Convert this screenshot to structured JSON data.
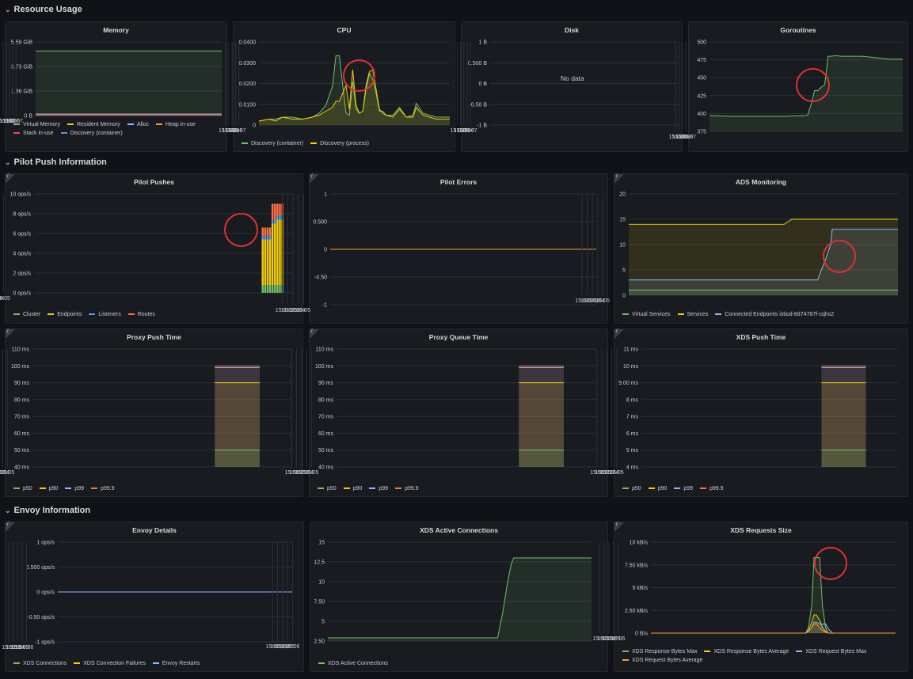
{
  "rows": [
    {
      "id": "row-resource",
      "title": "Resource Usage"
    },
    {
      "id": "row-pilot",
      "title": "Pilot Push Information"
    },
    {
      "id": "row-envoy",
      "title": "Envoy Information"
    }
  ],
  "chart_data": [
    {
      "id": "memory",
      "title": "Memory",
      "type": "area",
      "y_ticks": [
        "0 B",
        "1.86 GiB",
        "3.73 GiB",
        "5.59 GiB"
      ],
      "ylim": [
        0,
        5.59
      ],
      "x_ticks": [
        "15:03",
        "15:04",
        "15:05",
        "15:06",
        "15:07"
      ],
      "xlim": [
        15.013,
        15.07
      ],
      "series": [
        {
          "name": "Virtual Memory",
          "color": "#73bf69",
          "x": [
            15.013,
            15.07
          ],
          "y": [
            4.9,
            4.9
          ]
        },
        {
          "name": "Resident Memory",
          "color": "#f2cc0c",
          "x": [
            15.013,
            15.07
          ],
          "y": [
            0.12,
            0.12
          ]
        },
        {
          "name": "Alloc",
          "color": "#8ab8ff",
          "x": [
            15.013,
            15.07
          ],
          "y": [
            0.05,
            0.05
          ]
        },
        {
          "name": "Heap in-use",
          "color": "#ff9830",
          "x": [
            15.013,
            15.07
          ],
          "y": [
            0.06,
            0.06
          ]
        },
        {
          "name": "Stack in-use",
          "color": "#f2495c",
          "x": [
            15.013,
            15.07
          ],
          "y": [
            0.01,
            0.01
          ]
        },
        {
          "name": "Discovery (container)",
          "color": "#5794f2",
          "x": [
            15.013,
            15.07
          ],
          "y": [
            0.1,
            0.1
          ]
        }
      ],
      "legend": [
        "Virtual Memory",
        "Resident Memory",
        "Alloc",
        "Heap in-use",
        "Stack in-use",
        "Discovery (container)"
      ]
    },
    {
      "id": "cpu",
      "title": "CPU",
      "type": "area",
      "y_ticks": [
        "0",
        "0.0100",
        "0.0200",
        "0.0300",
        "0.0400"
      ],
      "ylim": [
        0,
        0.042
      ],
      "x_ticks": [
        "15:03",
        "15:04",
        "15:05",
        "15:06",
        "15:07"
      ],
      "xlim": [
        15.013,
        15.07
      ],
      "series": [
        {
          "name": "Discovery (container)",
          "color": "#73bf69",
          "x": [
            15.013,
            15.016,
            15.018,
            15.02,
            15.023,
            15.026,
            15.029,
            15.031,
            15.033,
            15.035,
            15.036,
            15.037,
            15.039,
            15.04,
            15.041,
            15.042,
            15.043,
            15.044,
            15.045,
            15.046,
            15.047,
            15.048,
            15.049,
            15.05,
            15.051,
            15.053,
            15.055,
            15.057,
            15.059,
            15.06,
            15.062,
            15.064,
            15.066,
            15.068,
            15.07
          ],
          "y": [
            0.002,
            0.003,
            0.003,
            0.004,
            0.004,
            0.003,
            0.004,
            0.006,
            0.01,
            0.02,
            0.035,
            0.035,
            0.006,
            0.005,
            0.022,
            0.008,
            0.006,
            0.007,
            0.018,
            0.026,
            0.023,
            0.016,
            0.007,
            0.007,
            0.005,
            0.005,
            0.009,
            0.004,
            0.005,
            0.011,
            0.006,
            0.005,
            0.004,
            0.004,
            0.004
          ]
        },
        {
          "name": "Discovery (process)",
          "color": "#f2cc0c",
          "x": [
            15.013,
            15.016,
            15.018,
            15.02,
            15.023,
            15.026,
            15.029,
            15.031,
            15.033,
            15.035,
            15.036,
            15.037,
            15.039,
            15.04,
            15.041,
            15.042,
            15.043,
            15.044,
            15.045,
            15.046,
            15.047,
            15.048,
            15.049,
            15.05,
            15.051,
            15.053,
            15.055,
            15.057,
            15.059,
            15.06,
            15.062,
            15.064,
            15.066,
            15.068,
            15.07
          ],
          "y": [
            0.002,
            0.003,
            0.002,
            0.004,
            0.003,
            0.003,
            0.004,
            0.005,
            0.007,
            0.009,
            0.012,
            0.012,
            0.02,
            0.008,
            0.028,
            0.01,
            0.006,
            0.007,
            0.02,
            0.027,
            0.028,
            0.018,
            0.008,
            0.006,
            0.005,
            0.004,
            0.008,
            0.004,
            0.004,
            0.009,
            0.005,
            0.004,
            0.003,
            0.003,
            0.003
          ]
        }
      ],
      "legend": [
        "Discovery (container)",
        "Discovery (process)"
      ]
    },
    {
      "id": "disk",
      "title": "Disk",
      "type": "line",
      "y_ticks": [
        "-1 B",
        "-0.50 B",
        "0 B",
        "0.500 B",
        "1 B"
      ],
      "ylim": [
        -1,
        1
      ],
      "x_ticks": [
        "15:03",
        "15:04",
        "15:05",
        "15:06",
        "15:07"
      ],
      "xlim": [
        15.013,
        15.07
      ],
      "series": [],
      "no_data": "No data",
      "legend": []
    },
    {
      "id": "goroutines",
      "title": "Goroutines",
      "type": "area",
      "y_ticks": [
        "375",
        "400",
        "425",
        "450",
        "475",
        "500"
      ],
      "ylim": [
        375,
        500
      ],
      "x_ticks": [
        "15:03",
        "15:04",
        "15:05",
        "15:06",
        "15:07"
      ],
      "xlim": [
        15.013,
        15.07
      ],
      "series": [
        {
          "name": "Goroutines",
          "color": "#73bf69",
          "x": [
            15.013,
            15.02,
            15.03,
            15.035,
            15.041,
            15.042,
            15.043,
            15.044,
            15.045,
            15.046,
            15.047,
            15.048,
            15.049,
            15.05,
            15.052,
            15.055,
            15.058,
            15.06,
            15.064,
            15.066,
            15.07
          ],
          "y": [
            397,
            396,
            396,
            396,
            397,
            398,
            413,
            432,
            432,
            437,
            440,
            480,
            480,
            481,
            480,
            480,
            480,
            479,
            477,
            476,
            476
          ]
        }
      ],
      "legend": []
    },
    {
      "id": "pilot-pushes",
      "title": "Pilot Pushes",
      "type": "bar",
      "y_ticks": [
        "0 ops/s",
        "2 ops/s",
        "4 ops/s",
        "6 ops/s",
        "8 ops/s",
        "10 ops/s"
      ],
      "ylim": [
        0,
        10
      ],
      "x_ticks": [
        "15:01",
        "15:02",
        "15:03",
        "15:04",
        "15:05"
      ],
      "xlim": [
        15.01,
        15.052
      ],
      "bar_times": [
        15.0472,
        15.0476,
        15.048,
        15.0484,
        15.0488,
        15.0492,
        15.0496,
        15.05,
        15.0504
      ],
      "stack_order": [
        "Cluster",
        "Endpoints",
        "Listeners",
        "Routes"
      ],
      "series": [
        {
          "name": "Cluster",
          "color": "#73bf69",
          "values": [
            0.8,
            0.8,
            0.8,
            0.8,
            0.8,
            0.8,
            0.8,
            0.8,
            0.8
          ]
        },
        {
          "name": "Endpoints",
          "color": "#f2cc0c",
          "values": [
            4.6,
            4.6,
            4.6,
            4.6,
            6.2,
            6.2,
            6.6,
            6.6,
            6.6
          ]
        },
        {
          "name": "Listeners",
          "color": "#5794f2",
          "values": [
            0.4,
            0.4,
            0.4,
            0.4,
            0.4,
            0.4,
            0.4,
            0.4,
            0.4
          ]
        },
        {
          "name": "Routes",
          "color": "#ff7043",
          "values": [
            0.8,
            0.8,
            0.8,
            0.8,
            1.6,
            1.6,
            1.2,
            1.2,
            1.2
          ]
        }
      ],
      "legend": [
        "Cluster",
        "Endpoints",
        "Listeners",
        "Routes"
      ]
    },
    {
      "id": "pilot-errors",
      "title": "Pilot Errors",
      "type": "line",
      "y_ticks": [
        "-1",
        "-0.50",
        "0",
        "0.500",
        "1"
      ],
      "ylim": [
        -1,
        1
      ],
      "x_ticks": [
        "15:01",
        "15:02",
        "15:03",
        "15:04",
        "15:05"
      ],
      "xlim": [
        15.01,
        15.06
      ],
      "series": [
        {
          "name": "errors",
          "color": "#ff9830",
          "x": [
            15.01,
            15.06
          ],
          "y": [
            0,
            0
          ]
        }
      ],
      "legend": []
    },
    {
      "id": "ads-monitoring",
      "title": "ADS Monitoring",
      "type": "area",
      "y_ticks": [
        "0",
        "5",
        "10",
        "15",
        "20"
      ],
      "ylim": [
        0,
        20
      ],
      "x_ticks": [
        "15:01",
        "15:02",
        "15:03",
        "15:04",
        "15:05"
      ],
      "xlim": [
        15.01,
        15.062
      ],
      "series": [
        {
          "name": "Virtual Services",
          "color": "#73bf69",
          "x": [
            15.01,
            15.062
          ],
          "y": [
            1,
            1
          ]
        },
        {
          "name": "Services",
          "color": "#f2cc0c",
          "x": [
            15.01,
            15.04,
            15.0415,
            15.062
          ],
          "y": [
            14,
            14,
            15,
            15
          ]
        },
        {
          "name": "Connected Endpoints istiod-8d74787f-cqhs2",
          "color": "#8ab8ff",
          "x": [
            15.01,
            15.0465,
            15.0472,
            15.048,
            15.049,
            15.0493,
            15.062
          ],
          "y": [
            3,
            3,
            5,
            7,
            10,
            13,
            13
          ]
        }
      ],
      "legend": [
        "Virtual Services",
        "Services",
        "Connected Endpoints istiod-8d74787f-cqhs2"
      ]
    },
    {
      "id": "proxy-push-time",
      "title": "Proxy Push Time",
      "type": "area",
      "y_ticks": [
        "40 ms",
        "50 ms",
        "60 ms",
        "70 ms",
        "80 ms",
        "90 ms",
        "100 ms",
        "110 ms"
      ],
      "ylim": [
        40,
        110
      ],
      "x_ticks": [
        "15:01",
        "15:02",
        "15:03",
        "15:04",
        "15:05"
      ],
      "xlim": [
        15.01,
        15.062
      ],
      "band_x": [
        15.0465,
        15.0555
      ],
      "series": [
        {
          "name": "p50",
          "color": "#73bf69",
          "value": 50
        },
        {
          "name": "p90",
          "color": "#f2cc0c",
          "value": 90
        },
        {
          "name": "p99",
          "color": "#8ab8ff",
          "value": 99
        },
        {
          "name": "p99.9",
          "color": "#ff7043",
          "value": 99.9
        }
      ],
      "legend": [
        "p50",
        "p90",
        "p99",
        "p99.9"
      ]
    },
    {
      "id": "proxy-queue-time",
      "title": "Proxy Queue Time",
      "type": "area",
      "y_ticks": [
        "40 ms",
        "50 ms",
        "60 ms",
        "70 ms",
        "80 ms",
        "90 ms",
        "100 ms",
        "110 ms"
      ],
      "ylim": [
        40,
        110
      ],
      "x_ticks": [
        "15:01",
        "15:02",
        "15:03",
        "15:04",
        "15:05"
      ],
      "xlim": [
        15.01,
        15.062
      ],
      "band_x": [
        15.0465,
        15.0555
      ],
      "series": [
        {
          "name": "p50",
          "color": "#73bf69",
          "value": 50
        },
        {
          "name": "p90",
          "color": "#f2cc0c",
          "value": 90
        },
        {
          "name": "p99",
          "color": "#8ab8ff",
          "value": 99
        },
        {
          "name": "p99.9",
          "color": "#ff7043",
          "value": 99.9
        }
      ],
      "legend": [
        "p50",
        "p90",
        "p99",
        "p99.9"
      ]
    },
    {
      "id": "xds-push-time",
      "title": "XDS Push Time",
      "type": "area",
      "y_ticks": [
        "4 ms",
        "5 ms",
        "6 ms",
        "7 ms",
        "8 ms",
        "9.00 ms",
        "10 ms",
        "11 ms"
      ],
      "ylim": [
        4,
        11
      ],
      "x_ticks": [
        "15:01",
        "15:02",
        "15:03",
        "15:04",
        "15:05"
      ],
      "xlim": [
        15.01,
        15.062
      ],
      "band_x": [
        15.0465,
        15.0555
      ],
      "series": [
        {
          "name": "p50",
          "color": "#73bf69",
          "value": 5
        },
        {
          "name": "p90",
          "color": "#f2cc0c",
          "value": 9
        },
        {
          "name": "p99",
          "color": "#8ab8ff",
          "value": 9.9
        },
        {
          "name": "p99.9",
          "color": "#ff7043",
          "value": 9.99
        }
      ],
      "legend": [
        "p50",
        "p90",
        "p99",
        "p99.9"
      ]
    },
    {
      "id": "envoy-details",
      "title": "Envoy Details",
      "type": "line",
      "y_ticks": [
        "-1 ops/s",
        "-0.50 ops/s",
        "0 ops/s",
        "0.500 ops/s",
        "1 ops/s"
      ],
      "ylim": [
        -1,
        1
      ],
      "x_ticks": [
        "15:02",
        "15:03",
        "15:04",
        "15:05",
        "15:06"
      ],
      "xlim": [
        15.013,
        15.0655
      ],
      "series": [
        {
          "name": "XDS Connections",
          "color": "#73bf69",
          "x": [
            15.013,
            15.0655
          ],
          "y": [
            0,
            0
          ]
        },
        {
          "name": "XDS Connection Failures",
          "color": "#f2cc0c",
          "x": [
            15.013,
            15.0655
          ],
          "y": [
            0,
            0
          ]
        },
        {
          "name": "Envoy Restarts",
          "color": "#8ab8ff",
          "x": [
            15.013,
            15.0655
          ],
          "y": [
            0,
            0
          ]
        }
      ],
      "legend": [
        "XDS Connections",
        "XDS Connection Failures",
        "Envoy Restarts"
      ]
    },
    {
      "id": "xds-active-connections",
      "title": "XDS Active Connections",
      "type": "area",
      "y_ticks": [
        "2.50",
        "5",
        "7.50",
        "10",
        "12.5",
        "15"
      ],
      "ylim": [
        2.5,
        15
      ],
      "x_ticks": [
        "15:02",
        "15:03",
        "15:04",
        "15:05",
        "15:06"
      ],
      "xlim": [
        15.013,
        15.0655
      ],
      "series": [
        {
          "name": "XDS Active Connections",
          "color": "#73bf69",
          "x": [
            15.013,
            15.0468,
            15.0478,
            15.0488,
            15.0495,
            15.05,
            15.0655
          ],
          "y": [
            2.9,
            2.9,
            6,
            10,
            12.2,
            13,
            13
          ]
        }
      ],
      "legend": [
        "XDS Active Connections"
      ]
    },
    {
      "id": "xds-requests-size",
      "title": "XDS Requests Size",
      "type": "area",
      "y_ticks": [
        "0 B/s",
        "2.50 kB/s",
        "5 kB/s",
        "7.50 kB/s",
        "10 kB/s"
      ],
      "ylim": [
        0,
        10
      ],
      "x_ticks": [
        "15:02",
        "15:03",
        "15:04",
        "15:05",
        "15:06"
      ],
      "xlim": [
        15.013,
        15.0655
      ],
      "series": [
        {
          "name": "XDS Response Bytes Max",
          "color": "#73bf69",
          "x": [
            15.013,
            15.0462,
            15.0468,
            15.0475,
            15.048,
            15.0485,
            15.0492,
            15.0498,
            15.0505,
            15.051,
            15.0655
          ],
          "y": [
            0,
            0,
            0.6,
            3,
            8.3,
            8.3,
            8.3,
            3,
            0.6,
            0,
            0
          ]
        },
        {
          "name": "XDS Response Bytes Average",
          "color": "#f2cc0c",
          "x": [
            15.013,
            15.0462,
            15.0468,
            15.0475,
            15.048,
            15.0485,
            15.0492,
            15.0498,
            15.0505,
            15.051,
            15.0655
          ],
          "y": [
            0,
            0,
            0.3,
            1.2,
            2,
            2,
            1.4,
            0.6,
            0.2,
            0,
            0
          ]
        },
        {
          "name": "XDS Request Bytes Max",
          "color": "#8ab8ff",
          "x": [
            15.013,
            15.0462,
            15.0468,
            15.0475,
            15.048,
            15.0485,
            15.0492,
            15.0498,
            15.0505,
            15.0512,
            15.052,
            15.0655
          ],
          "y": [
            0,
            0,
            0.2,
            0.6,
            1.2,
            1.2,
            1,
            1,
            1,
            0.4,
            0,
            0
          ]
        },
        {
          "name": "XDS Request Bytes Average",
          "color": "#ff9830",
          "x": [
            15.013,
            15.0462,
            15.0468,
            15.0475,
            15.048,
            15.0485,
            15.0492,
            15.0498,
            15.0505,
            15.051,
            15.0655
          ],
          "y": [
            0,
            0,
            0.2,
            0.6,
            1,
            1,
            0.6,
            0.3,
            0.1,
            0,
            0
          ]
        }
      ],
      "legend": [
        "XDS Response Bytes Max",
        "XDS Response Bytes Average",
        "XDS Request Bytes Max",
        "XDS Request Bytes Average"
      ]
    }
  ]
}
